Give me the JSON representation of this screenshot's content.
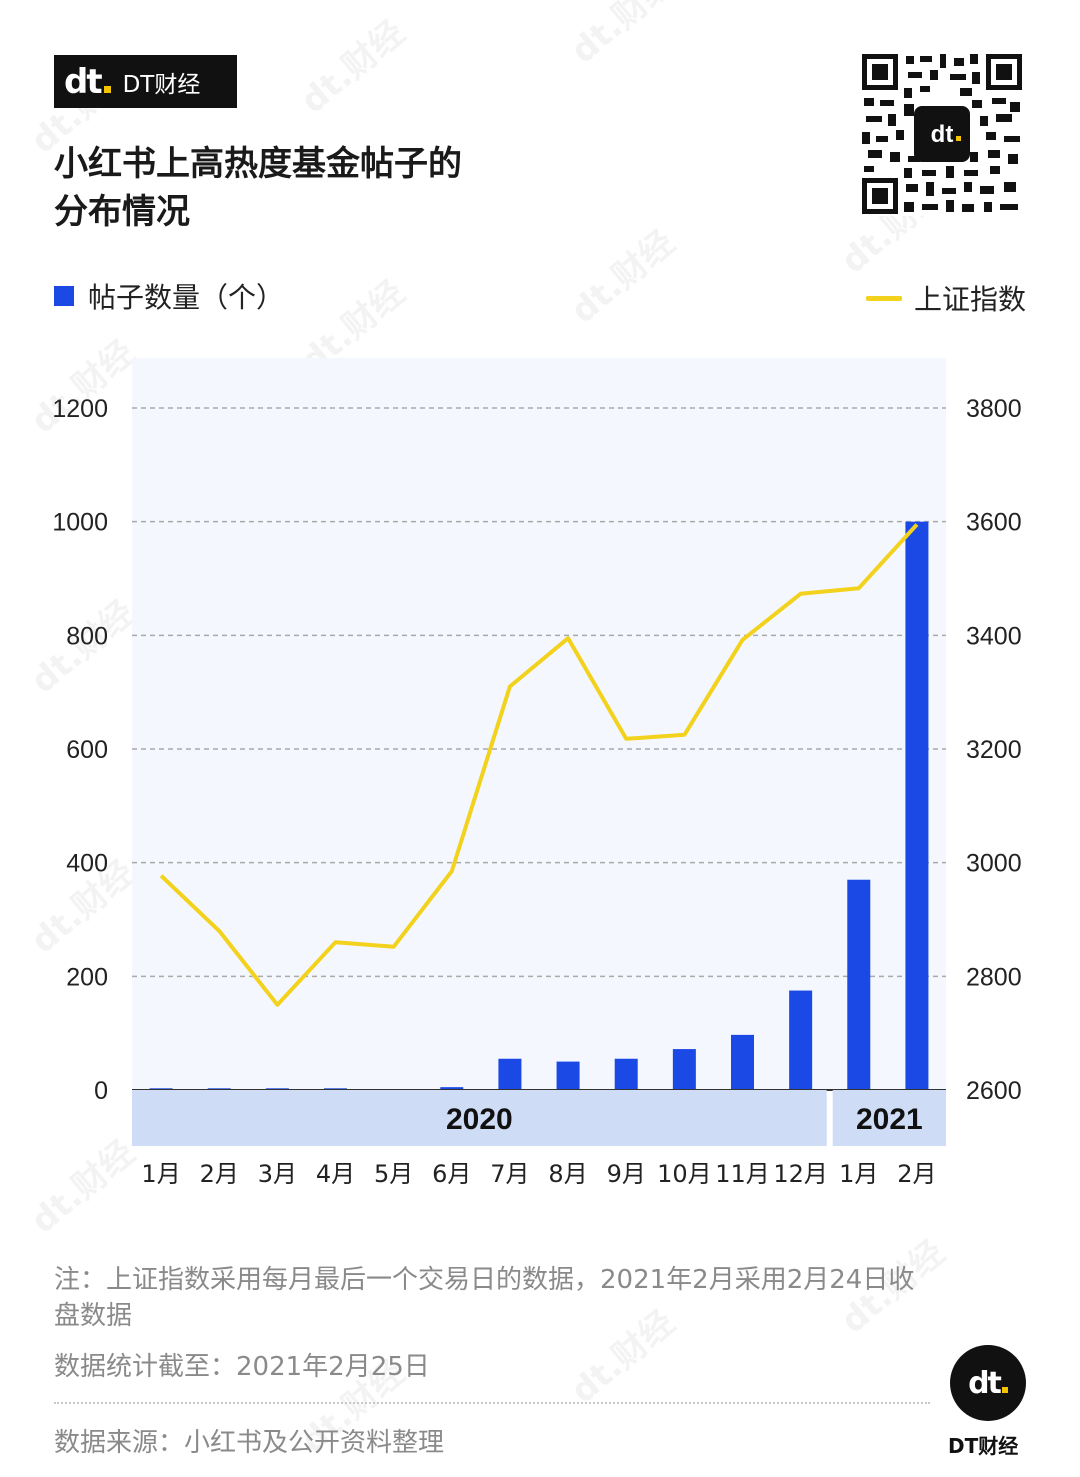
{
  "brand": {
    "name": "DT财经",
    "logo_mark": "dt"
  },
  "title_line1": "小红书上高热度基金帖子的",
  "title_line2": "分布情况",
  "watermark_text": "dt.财经",
  "legend": {
    "bar_label": "帖子数量（个）",
    "line_label": "上证指数"
  },
  "colors": {
    "bar": "#1a49e6",
    "line": "#f2d21c",
    "plot_bg": "#f4f7fd",
    "year_band": "#cfdcf6"
  },
  "chart_data": {
    "type": "bar",
    "categories": [
      "1月",
      "2月",
      "3月",
      "4月",
      "5月",
      "6月",
      "7月",
      "8月",
      "9月",
      "10月",
      "11月",
      "12月",
      "1月",
      "2月"
    ],
    "years": [
      {
        "label": "2020",
        "start": 0,
        "end": 11
      },
      {
        "label": "2021",
        "start": 12,
        "end": 13
      }
    ],
    "series": [
      {
        "name": "帖子数量（个）",
        "type": "bar",
        "axis": "left",
        "values": [
          3,
          3,
          3,
          3,
          0,
          5,
          55,
          50,
          55,
          72,
          97,
          175,
          370,
          1000
        ]
      },
      {
        "name": "上证指数",
        "type": "line",
        "axis": "right",
        "values": [
          2977,
          2880,
          2750,
          2860,
          2852,
          2985,
          3310,
          3395,
          3218,
          3225,
          3392,
          3473,
          3483,
          3595
        ]
      }
    ],
    "left_axis": {
      "ylim": [
        0,
        1200
      ],
      "ticks": [
        0,
        200,
        400,
        600,
        800,
        1000,
        1200
      ]
    },
    "right_axis": {
      "ylim": [
        2600,
        3800
      ],
      "ticks": [
        2600,
        2800,
        3000,
        3200,
        3400,
        3600,
        3800
      ]
    },
    "grid": true,
    "legend_position": "top"
  },
  "notes": {
    "note1": "注：上证指数采用每月最后一个交易日的数据，2021年2月采用2月24日收盘数据",
    "note2": "数据统计截至：2021年2月25日",
    "source": "数据来源：小红书及公开资料整理"
  }
}
